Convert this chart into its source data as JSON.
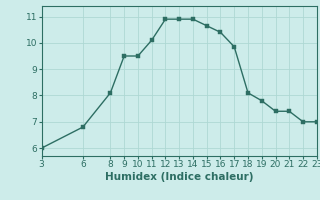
{
  "x": [
    3,
    6,
    8,
    9,
    10,
    11,
    12,
    13,
    14,
    15,
    16,
    17,
    18,
    19,
    20,
    21,
    22,
    23
  ],
  "y": [
    6.0,
    6.8,
    8.1,
    9.5,
    9.5,
    10.1,
    10.9,
    10.9,
    10.9,
    10.65,
    10.4,
    9.85,
    8.1,
    7.8,
    7.4,
    7.4,
    7.0,
    7.0
  ],
  "line_color": "#2d6e63",
  "marker_color": "#2d6e63",
  "bg_color": "#cdecea",
  "grid_color": "#aed8d4",
  "xlabel": "Humidex (Indice chaleur)",
  "xlim": [
    3,
    23
  ],
  "ylim": [
    5.7,
    11.4
  ],
  "xticks": [
    3,
    6,
    8,
    9,
    10,
    11,
    12,
    13,
    14,
    15,
    16,
    17,
    18,
    19,
    20,
    21,
    22,
    23
  ],
  "yticks": [
    6,
    7,
    8,
    9,
    10,
    11
  ],
  "xlabel_fontsize": 7.5,
  "tick_fontsize": 6.5,
  "line_width": 1.0,
  "marker_size": 2.5
}
